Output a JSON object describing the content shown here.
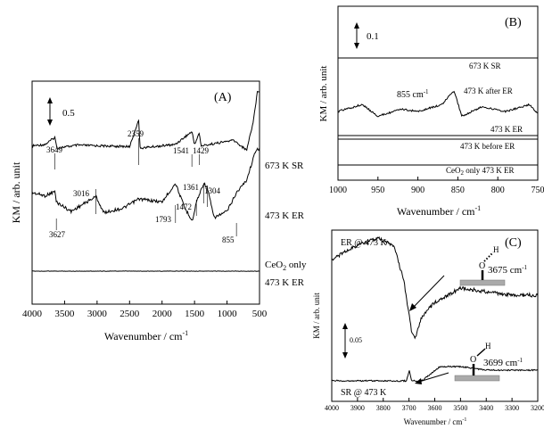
{
  "chart_data": [
    {
      "type": "line",
      "panel_label": "(A)",
      "xlabel": "Wavenumber / cm",
      "xlabel_sup": "-1",
      "ylabel": "KM / arb. unit",
      "xlim": [
        4000,
        500
      ],
      "x_reversed": true,
      "xticks": [
        "4000",
        "3500",
        "3000",
        "2500",
        "2000",
        "1500",
        "1000",
        "500"
      ],
      "scale_bar_label": "0.5",
      "series": [
        {
          "name": "673 K SR",
          "points": [
            [
              4000,
              0.18
            ],
            [
              3800,
              0.2
            ],
            [
              3649,
              0.3
            ],
            [
              3620,
              0.15
            ],
            [
              3300,
              0.19
            ],
            [
              2500,
              0.17
            ],
            [
              2359,
              0.55
            ],
            [
              2340,
              0.15
            ],
            [
              1800,
              0.2
            ],
            [
              1541,
              0.38
            ],
            [
              1500,
              0.2
            ],
            [
              1429,
              0.36
            ],
            [
              1400,
              0.18
            ],
            [
              900,
              0.26
            ],
            [
              700,
              0.12
            ],
            [
              600,
              0.5
            ],
            [
              530,
              0.95
            ]
          ]
        },
        {
          "name": "473 K ER",
          "points": [
            [
              4000,
              0.2
            ],
            [
              3800,
              0.15
            ],
            [
              3649,
              0.22
            ],
            [
              3627,
              0.05
            ],
            [
              3400,
              -0.1
            ],
            [
              3016,
              0.14
            ],
            [
              2900,
              -0.12
            ],
            [
              2600,
              -0.05
            ],
            [
              2359,
              0.1
            ],
            [
              2000,
              0.05
            ],
            [
              1793,
              0.35
            ],
            [
              1650,
              -0.05
            ],
            [
              1530,
              -0.25
            ],
            [
              1472,
              0.05
            ],
            [
              1361,
              0.35
            ],
            [
              1304,
              0.28
            ],
            [
              1200,
              -0.2
            ],
            [
              1000,
              -0.1
            ],
            [
              855,
              0.2
            ],
            [
              700,
              0.4
            ],
            [
              550,
              0.9
            ]
          ]
        },
        {
          "name": "CeO2 only 473 K ER",
          "points": [
            [
              4000,
              0.0
            ],
            [
              500,
              0.0
            ]
          ]
        }
      ],
      "annotations": [
        "3649",
        "2359",
        "1541",
        "1429",
        "3016",
        "1361",
        "1304",
        "1793",
        "1472",
        "3627",
        "855"
      ],
      "series_labels": {
        "s1": "673 K SR",
        "s2": "473 K ER",
        "s3_pre": "CeO",
        "s3_sub": "2",
        "s3_post": " only",
        "s3_line2": "473 K ER"
      }
    },
    {
      "type": "line",
      "panel_label": "(B)",
      "xlabel": "Wavenumber / cm",
      "xlabel_sup": "-1",
      "ylabel": "KM / arb. unit",
      "xlim": [
        1000,
        750
      ],
      "x_reversed": true,
      "xticks": [
        "1000",
        "950",
        "900",
        "850",
        "800",
        "750"
      ],
      "scale_bar_label": "0.1",
      "peak_label": "855 cm",
      "peak_label_sup": "-1",
      "series": [
        {
          "name": "673 K SR",
          "points": [
            [
              1000,
              0
            ],
            [
              750,
              0
            ]
          ]
        },
        {
          "name": "473 K after ER",
          "points": [
            [
              1000,
              0
            ],
            [
              970,
              0.03
            ],
            [
              950,
              -0.02
            ],
            [
              920,
              0.01
            ],
            [
              900,
              0.0
            ],
            [
              870,
              0.03
            ],
            [
              855,
              0.09
            ],
            [
              845,
              -0.02
            ],
            [
              820,
              0.02
            ],
            [
              790,
              0.0
            ],
            [
              760,
              0.03
            ],
            [
              750,
              -0.01
            ]
          ]
        },
        {
          "name": "473 K ER",
          "points": [
            [
              1000,
              0
            ],
            [
              750,
              0
            ]
          ]
        },
        {
          "name": "473 K before ER",
          "points": [
            [
              1000,
              0
            ],
            [
              750,
              0
            ]
          ]
        },
        {
          "name": "CeO2 only 473 K ER",
          "points": [
            [
              1000,
              0
            ],
            [
              750,
              0
            ]
          ]
        }
      ],
      "series_labels": {
        "s1": "673 K SR",
        "s2": "473 K after ER",
        "s3": "473 K ER",
        "s4": "473 K before ER",
        "s5_pre": "CeO",
        "s5_sub": "2",
        "s5_post": " only 473 K ER"
      }
    },
    {
      "type": "line",
      "panel_label": "(C)",
      "xlabel": "Wavenumber / cm",
      "xlabel_sup": "-1",
      "ylabel": "KM / arb. unit",
      "xlim": [
        4000,
        3200
      ],
      "x_reversed": true,
      "xticks": [
        "4000",
        "3900",
        "3800",
        "3700",
        "3600",
        "3500",
        "3400",
        "3300",
        "3200"
      ],
      "scale_bar_label": "0.05",
      "series": [
        {
          "name": "ER @ 473 K",
          "points": [
            [
              4000,
              0.03
            ],
            [
              3900,
              0.05
            ],
            [
              3820,
              0.06
            ],
            [
              3760,
              0.05
            ],
            [
              3720,
              0.0
            ],
            [
              3690,
              -0.07
            ],
            [
              3675,
              -0.08
            ],
            [
              3650,
              -0.05
            ],
            [
              3600,
              -0.03
            ],
            [
              3500,
              -0.01
            ],
            [
              3400,
              -0.015
            ],
            [
              3300,
              -0.02
            ],
            [
              3200,
              -0.02
            ]
          ]
        },
        {
          "name": "SR @ 473 K",
          "points": [
            [
              4000,
              -0.14
            ],
            [
              3800,
              -0.14
            ],
            [
              3710,
              -0.14
            ],
            [
              3699,
              -0.125
            ],
            [
              3690,
              -0.14
            ],
            [
              3650,
              -0.14
            ],
            [
              3580,
              -0.12
            ],
            [
              3500,
              -0.12
            ],
            [
              3400,
              -0.125
            ],
            [
              3300,
              -0.125
            ],
            [
              3200,
              -0.125
            ]
          ]
        }
      ],
      "series_labels": {
        "s1": "ER @ 473 K",
        "s2": "SR @ 473 K"
      },
      "annotations": {
        "a1": "3675 cm",
        "a1_sup": "-1",
        "a2": "3699 cm",
        "a2_sup": "-1",
        "h1": "H",
        "o1": "O",
        "h2": "H",
        "o2": "O"
      }
    }
  ]
}
